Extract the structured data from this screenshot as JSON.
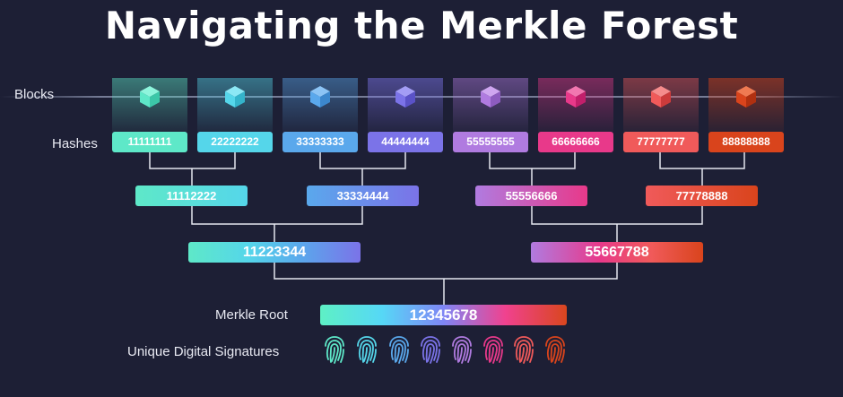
{
  "title": "Navigating the Merkle Forest",
  "labels": {
    "blocks": "Blocks",
    "hashes": "Hashes",
    "root": "Merkle Root",
    "signatures": "Unique Digital Signatures"
  },
  "colors": {
    "background": "#1d1f35",
    "palette": [
      "#5ee8c8",
      "#55d6ea",
      "#5aa8ec",
      "#7b73e8",
      "#b07be0",
      "#e8398a",
      "#f05a5a",
      "#d9441c"
    ]
  },
  "icons": {
    "block": "cube-icon",
    "signature": "fingerprint-icon"
  },
  "level0": [
    "11111111",
    "22222222",
    "33333333",
    "44444444",
    "55555555",
    "66666666",
    "77777777",
    "88888888"
  ],
  "level1": [
    "11112222",
    "33334444",
    "55556666",
    "77778888"
  ],
  "level2": [
    "11223344",
    "55667788"
  ],
  "merkle_root": "12345678"
}
